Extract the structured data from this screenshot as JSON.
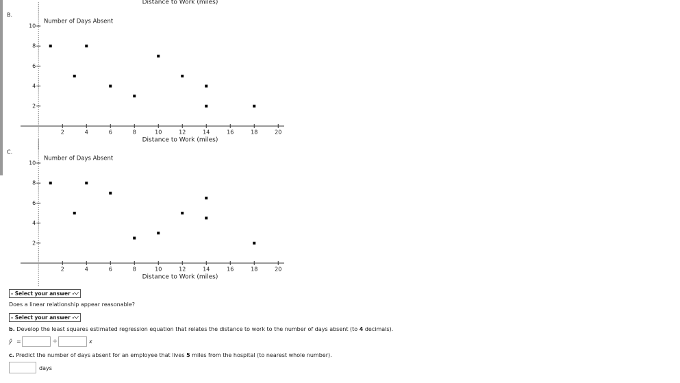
{
  "cut_axis_label": "Distance to Work (miles)",
  "chart_data": [
    {
      "type": "scatter",
      "label": "B.",
      "y_label": "Number of Days Absent",
      "x_label": "Distance to Work (miles)",
      "x": [
        1,
        4,
        3,
        6,
        8,
        10,
        12,
        14,
        14,
        18
      ],
      "y": [
        8,
        8,
        5,
        4,
        3,
        7,
        5,
        4,
        2,
        2
      ],
      "xlim": [
        -1.5,
        20.5
      ],
      "ylim": [
        -2,
        11
      ],
      "xticks": [
        2,
        4,
        6,
        8,
        10,
        12,
        14,
        16,
        18,
        20
      ],
      "yticks": [
        2,
        4,
        6,
        8,
        10
      ],
      "color": "#000000"
    },
    {
      "type": "scatter",
      "label": "C.",
      "y_label": "Number of Days Absent",
      "x_label": "Distance to Work (miles)",
      "x": [
        1,
        4,
        3,
        6,
        8,
        10,
        12,
        14,
        14,
        18
      ],
      "y": [
        8,
        8,
        5,
        7,
        2.5,
        3,
        5,
        6.5,
        4.5,
        2
      ],
      "xlim": [
        -1.5,
        20.5
      ],
      "ylim": [
        -2,
        11
      ],
      "xticks": [
        2,
        4,
        6,
        8,
        10,
        12,
        14,
        16,
        18,
        20
      ],
      "yticks": [
        2,
        4,
        6,
        8,
        10
      ],
      "color": "#000000"
    }
  ],
  "selects": [
    "- Select your answer -",
    "- Select your answer -"
  ],
  "question": "Does a linear relationship appear reasonable?",
  "part_b": {
    "letter": "b.",
    "before": " Develop the least squares estimated regression equation that relates the distance to work to the number of days absent (to ",
    "bold": "4",
    "after": " decimals)."
  },
  "equation": {
    "lhs": "ŷ",
    "eq": "=",
    "plus": "+",
    "var": "x"
  },
  "part_c": {
    "letter": "c.",
    "before": " Predict the number of days absent for an employee that lives ",
    "bold": "5",
    "after": " miles from the hospital (to nearest whole number)."
  },
  "unit": "days"
}
